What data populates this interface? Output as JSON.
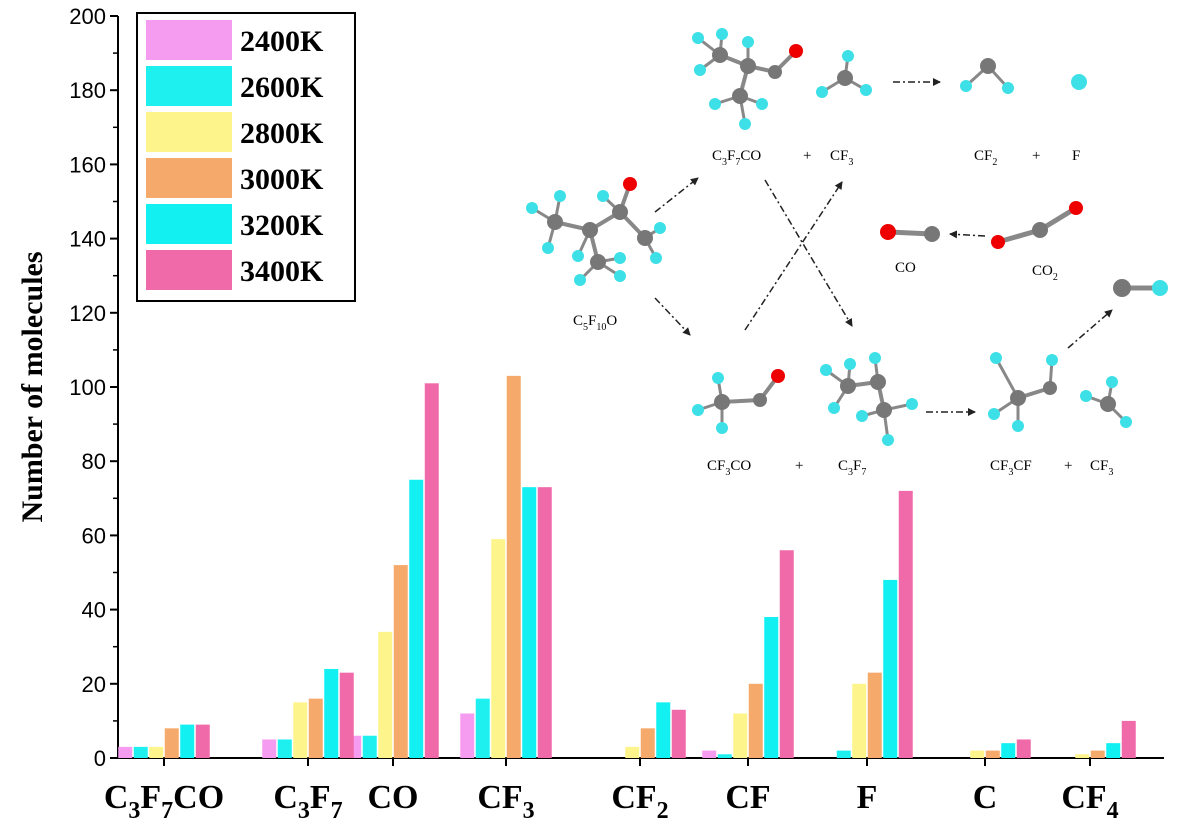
{
  "chart_data": {
    "type": "bar",
    "ylabel": "Number of molecules",
    "ylim": [
      0,
      200
    ],
    "yticks": [
      "0",
      "20",
      "40",
      "60",
      "80",
      "100",
      "120",
      "140",
      "160",
      "180",
      "200"
    ],
    "categories": [
      {
        "base": "C",
        "sub1": "3",
        "mid": "F",
        "sub2": "7",
        "tail": "CO"
      },
      {
        "base": "C",
        "sub1": "3",
        "mid": "F",
        "sub2": "7",
        "tail": ""
      },
      {
        "base": "CO",
        "sub1": "",
        "mid": "",
        "sub2": "",
        "tail": ""
      },
      {
        "base": "CF",
        "sub1": "3",
        "mid": "",
        "sub2": "",
        "tail": ""
      },
      {
        "base": "CF",
        "sub1": "2",
        "mid": "",
        "sub2": "",
        "tail": ""
      },
      {
        "base": "CF",
        "sub1": "",
        "mid": "",
        "sub2": "",
        "tail": ""
      },
      {
        "base": "F",
        "sub1": "",
        "mid": "",
        "sub2": "",
        "tail": ""
      },
      {
        "base": "C",
        "sub1": "",
        "mid": "",
        "sub2": "",
        "tail": ""
      },
      {
        "base": "CF",
        "sub1": "4",
        "mid": "",
        "sub2": "",
        "tail": ""
      }
    ],
    "series": [
      {
        "name": "2400K",
        "color": "#f59cf0",
        "values": [
          3,
          5,
          6,
          12,
          0,
          2,
          0,
          0,
          0
        ]
      },
      {
        "name": "2600K",
        "color": "#1ef0f0",
        "values": [
          3,
          5,
          6,
          16,
          0,
          1,
          2,
          0,
          0
        ]
      },
      {
        "name": "2800K",
        "color": "#fdf48c",
        "values": [
          3,
          15,
          34,
          59,
          3,
          12,
          20,
          2,
          1
        ]
      },
      {
        "name": "3000K",
        "color": "#f5aa6c",
        "values": [
          8,
          16,
          52,
          103,
          8,
          20,
          23,
          2,
          2
        ]
      },
      {
        "name": "3200K",
        "color": "#12f0f2",
        "values": [
          9,
          24,
          75,
          73,
          15,
          38,
          48,
          4,
          4
        ]
      },
      {
        "name": "3400K",
        "color": "#f06aaa",
        "values": [
          9,
          23,
          101,
          73,
          13,
          56,
          72,
          5,
          10
        ]
      }
    ],
    "legend_placement": "top-left",
    "grid": false
  },
  "mechanism": {
    "parent": {
      "a": "C",
      "b": "5",
      "c": "F",
      "d": "10",
      "e": "O"
    },
    "c3f7co": {
      "a": "C",
      "b": "3",
      "c": "F",
      "d": "7",
      "e": "CO"
    },
    "plus": "+",
    "cf3": {
      "a": "CF",
      "b": "3"
    },
    "cf2": {
      "a": "CF",
      "b": "2"
    },
    "f": "F",
    "co": "CO",
    "co2": {
      "a": "CO",
      "b": "2"
    },
    "cf3co": {
      "a": "CF",
      "b": "3",
      "c": "CO"
    },
    "c3f7": {
      "a": "C",
      "b": "3",
      "c": "F",
      "d": "7"
    },
    "cf3cf": {
      "a": "CF",
      "b": "3",
      "c": "CF"
    }
  }
}
